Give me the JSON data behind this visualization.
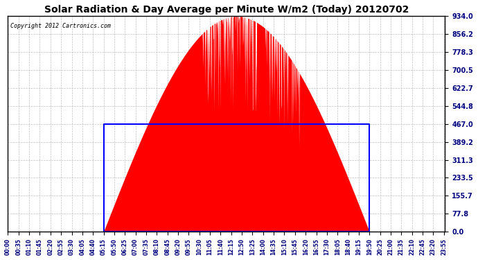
{
  "title": "Solar Radiation & Day Average per Minute W/m2 (Today) 20120702",
  "copyright": "Copyright 2012 Cartronics.com",
  "bg_color": "#ffffff",
  "plot_bg_color": "#ffffff",
  "fill_color": "#ff0000",
  "line_color": "#0000ff",
  "grid_color": "#c0c0c0",
  "ytick_labels": [
    "0.0",
    "77.8",
    "155.7",
    "233.5",
    "311.3",
    "389.2",
    "467.0",
    "544.8",
    "622.7",
    "700.5",
    "778.3",
    "856.2",
    "934.0"
  ],
  "ytick_values": [
    0.0,
    77.8,
    155.7,
    233.5,
    311.3,
    389.2,
    467.0,
    544.8,
    622.7,
    700.5,
    778.3,
    856.2,
    934.0
  ],
  "ymax": 934.0,
  "ymin": 0.0,
  "day_avg": 467.0,
  "sunrise_min": 315,
  "sunset_min": 1190,
  "num_points": 1440,
  "tick_step_min": 35,
  "title_fontsize": 10,
  "tick_fontsize": 5.5,
  "ytick_fontsize": 7,
  "copyright_fontsize": 6
}
